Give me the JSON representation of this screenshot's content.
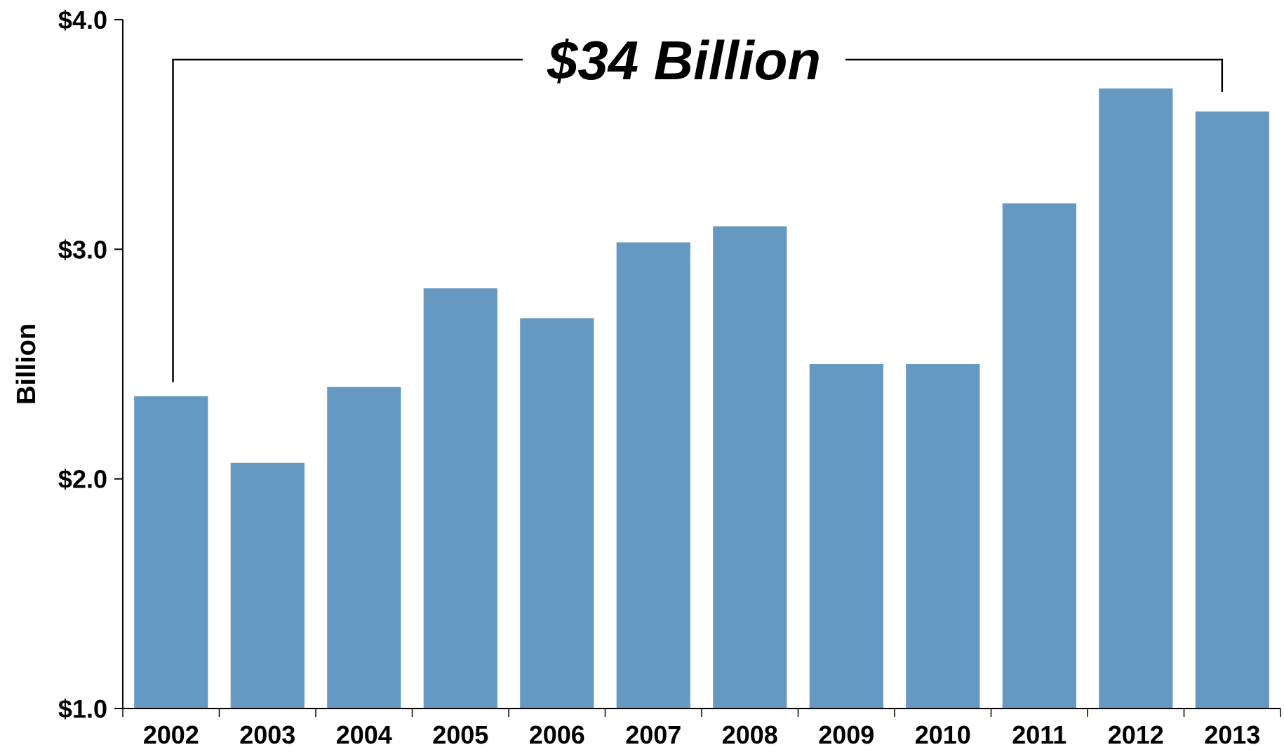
{
  "chart_data": {
    "type": "bar",
    "categories": [
      "2002",
      "2003",
      "2004",
      "2005",
      "2006",
      "2007",
      "2008",
      "2009",
      "2010",
      "2011",
      "2012",
      "2013"
    ],
    "values": [
      2.36,
      2.07,
      2.4,
      2.83,
      2.7,
      3.03,
      3.1,
      2.5,
      2.5,
      3.2,
      3.7,
      3.6
    ],
    "title": "",
    "xlabel": "",
    "ylabel": "Billion",
    "ylim": [
      1.0,
      4.0
    ],
    "yticks": [
      1.0,
      2.0,
      3.0,
      4.0
    ],
    "ytick_labels": [
      "$1.0",
      "$2.0",
      "$3.0",
      "$4.0"
    ],
    "grid": false,
    "legend": "none",
    "bar_color": "#6699c2",
    "annotation": {
      "text": "$34 Billion",
      "from_category": "2002",
      "to_category": "2013"
    }
  }
}
